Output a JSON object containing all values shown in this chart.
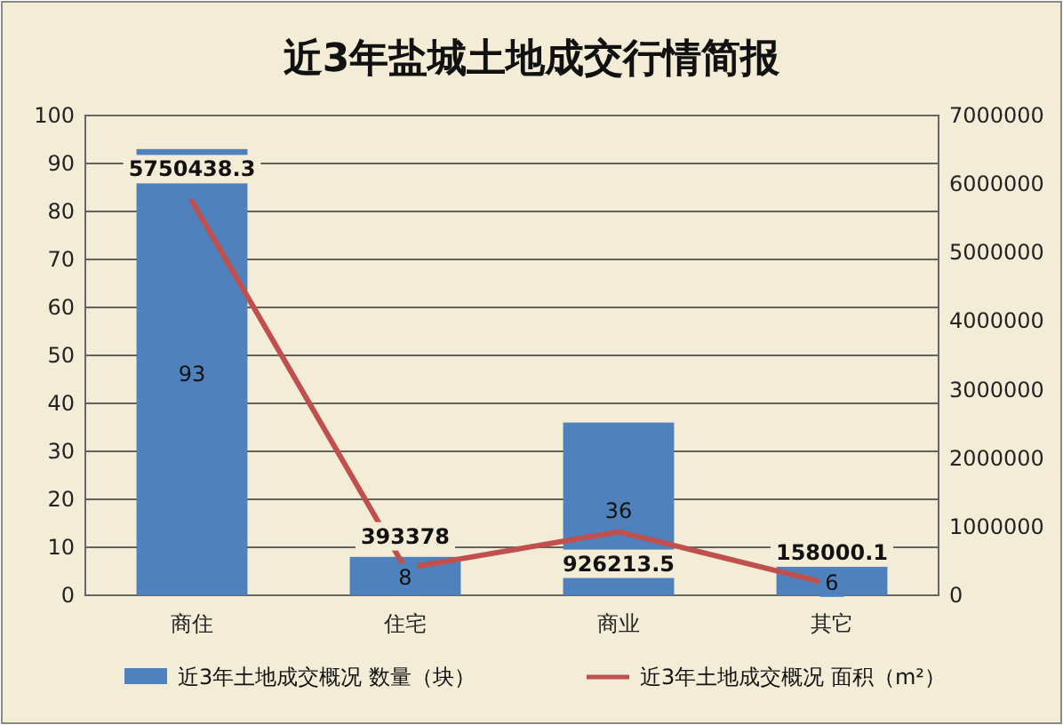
{
  "chart_data": {
    "type": "bar",
    "title": "近3年盐城土地成交行情简报",
    "categories": [
      "商住",
      "住宅",
      "商业",
      "其它"
    ],
    "series": [
      {
        "name": "近3年土地成交概况 数量（块）",
        "color": "#4f81bd",
        "values": [
          93,
          8,
          36,
          6
        ]
      },
      {
        "name": "近3年土地成交概况 面积（m²）",
        "type": "line",
        "axis": "y2",
        "color": "#c0504d",
        "values": [
          5750438.3,
          393378,
          926213.5,
          158000.1
        ]
      }
    ],
    "ylim": [
      0,
      100
    ],
    "yticks": [
      0,
      10,
      20,
      30,
      40,
      50,
      60,
      70,
      80,
      90,
      100
    ],
    "y2lim": [
      0,
      7000000
    ],
    "y2ticks": [
      0,
      1000000,
      2000000,
      3000000,
      4000000,
      5000000,
      6000000,
      7000000
    ],
    "grid": "y",
    "legend": "bottom",
    "data_labels": true,
    "marker": "none",
    "line_style": "solid"
  }
}
